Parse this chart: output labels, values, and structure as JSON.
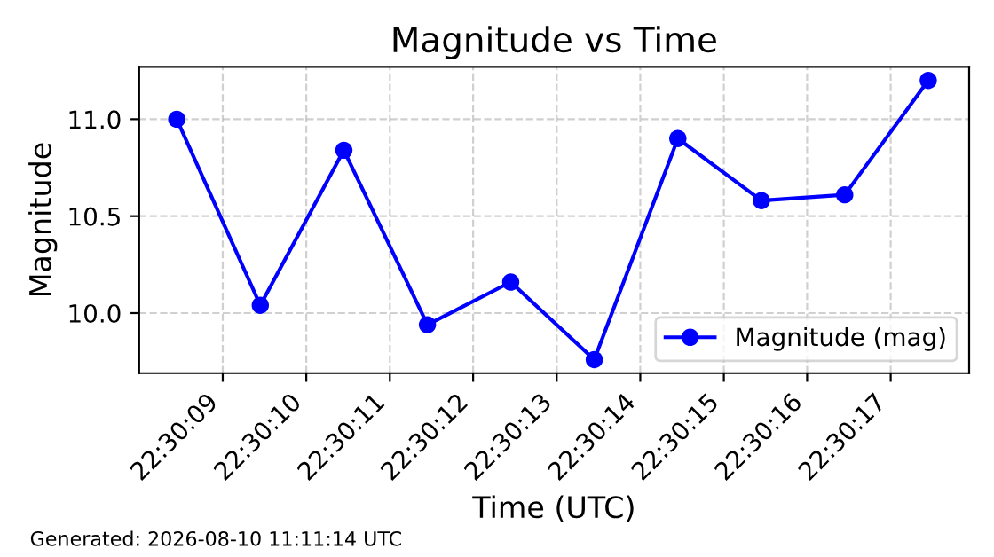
{
  "chart_data": {
    "type": "line",
    "title": "Magnitude vs Time",
    "xlabel": "Time (UTC)",
    "ylabel": "Magnitude",
    "x": [
      22.502347,
      22.502625,
      22.502903,
      22.503181,
      22.503458,
      22.503736,
      22.504014,
      22.504292,
      22.504569,
      22.504847
    ],
    "series": [
      {
        "name": "Magnitude (mag)",
        "color": "#0000ff",
        "values": [
          11.0,
          10.04,
          10.84,
          9.94,
          10.16,
          9.76,
          10.9,
          10.58,
          10.61,
          11.2
        ]
      }
    ],
    "xlim": [
      22.502222,
      22.504983
    ],
    "xticks": [
      {
        "value": 22.5025,
        "label": "22:30:09"
      },
      {
        "value": 22.502778,
        "label": "22:30:10"
      },
      {
        "value": 22.503056,
        "label": "22:30:11"
      },
      {
        "value": 22.503333,
        "label": "22:30:12"
      },
      {
        "value": 22.503611,
        "label": "22:30:13"
      },
      {
        "value": 22.503889,
        "label": "22:30:14"
      },
      {
        "value": 22.504167,
        "label": "22:30:15"
      },
      {
        "value": 22.504444,
        "label": "22:30:16"
      },
      {
        "value": 22.504722,
        "label": "22:30:17"
      }
    ],
    "ylim": [
      9.69,
      11.27
    ],
    "yticks": [
      {
        "value": 10.0,
        "label": "10.0"
      },
      {
        "value": 10.5,
        "label": "10.5"
      },
      {
        "value": 11.0,
        "label": "11.0"
      }
    ],
    "grid": true,
    "legend": "lower right",
    "marker": "circle",
    "line_style": "solid",
    "annotations": [
      "Generated: 2026-08-10 11:11:14 UTC"
    ]
  }
}
